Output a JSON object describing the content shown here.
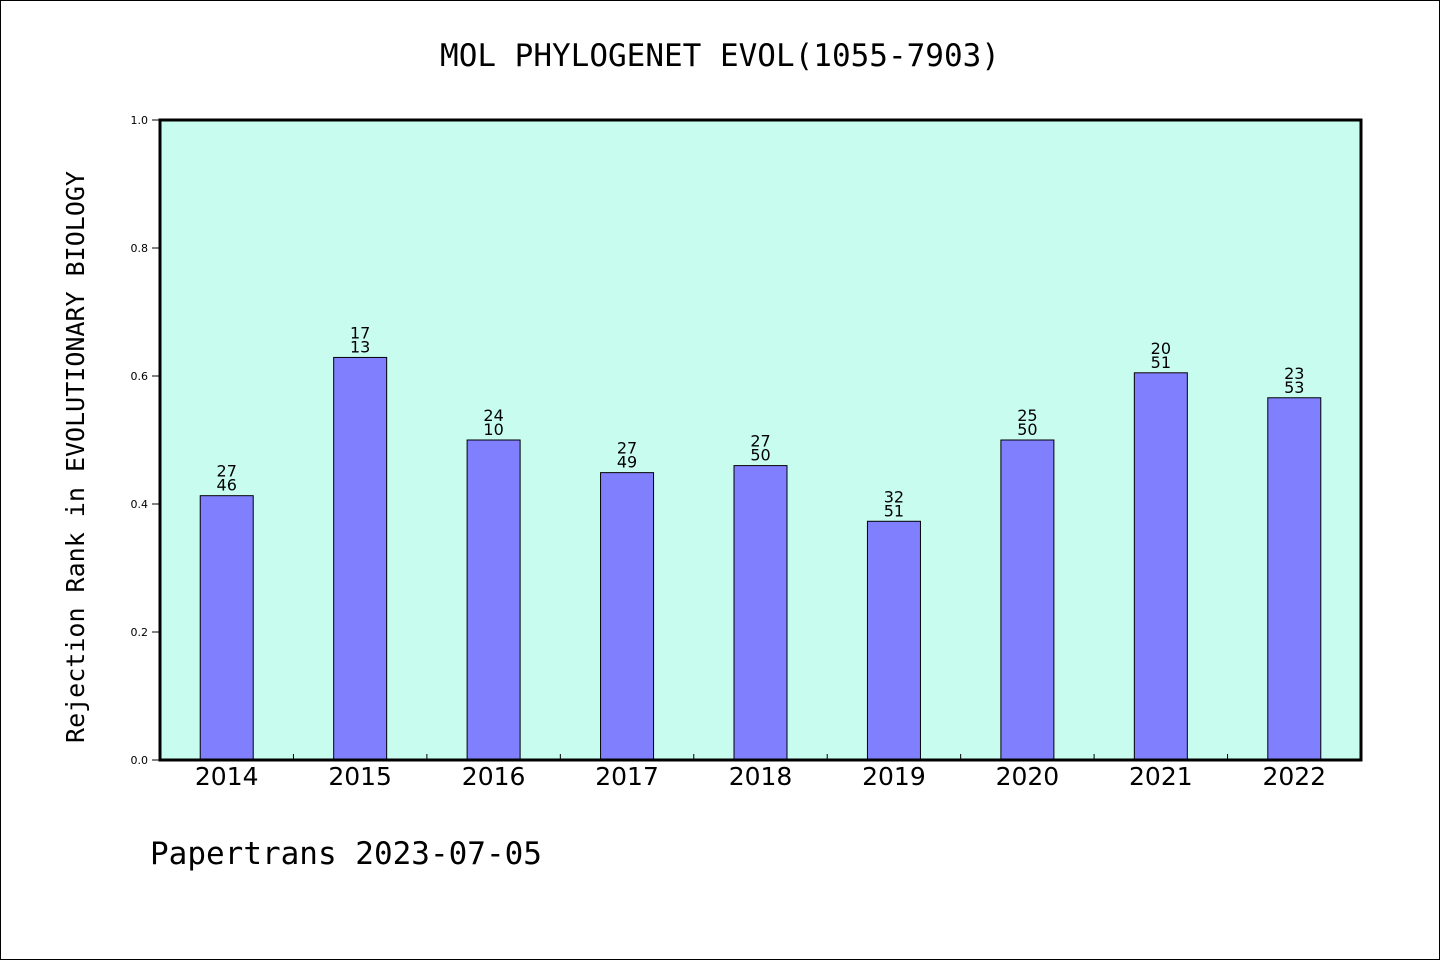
{
  "chart_data": {
    "type": "bar",
    "title": "MOL PHYLOGENET EVOL(1055-7903)",
    "ylabel": "Rejection Rank in EVOLUTIONARY BIOLOGY",
    "xlabel": "",
    "ylim": [
      0,
      1.0
    ],
    "yticks": [
      "0.0",
      "0.2",
      "0.4",
      "0.6",
      "0.8",
      "1.0"
    ],
    "categories": [
      "2014",
      "2015",
      "2016",
      "2017",
      "2018",
      "2019",
      "2020",
      "2021",
      "2022"
    ],
    "values": [
      0.413,
      0.629,
      0.5,
      0.449,
      0.46,
      0.373,
      0.5,
      0.605,
      0.566
    ],
    "bar_labels_top": [
      "27",
      "17",
      "24",
      "27",
      "27",
      "32",
      "25",
      "20",
      "23"
    ],
    "bar_labels_bottom": [
      "46",
      "13",
      "10",
      "49",
      "50",
      "51",
      "50",
      "51",
      "53"
    ],
    "grid": false,
    "colors": {
      "plot_background": "#c8fcee",
      "bar_fill": "#8080ff",
      "bar_stroke": "#000000"
    }
  },
  "footer": {
    "text": "Papertrans 2023-07-05"
  }
}
